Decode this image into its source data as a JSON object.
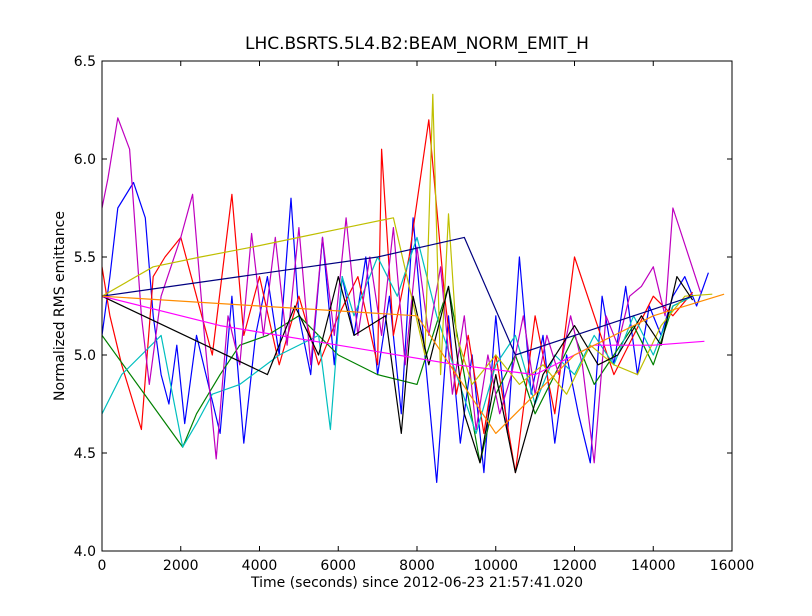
{
  "chart_data": {
    "type": "line",
    "title": "LHC.BSRTS.5L4.B2:BEAM_NORM_EMIT_H",
    "xlabel": "Time (seconds) since 2012-06-23 21:57:41.020",
    "ylabel": "Normalized RMS emittance",
    "xlim": [
      0,
      16000
    ],
    "ylim": [
      4.0,
      6.5
    ],
    "xticks": [
      0,
      2000,
      4000,
      6000,
      8000,
      10000,
      12000,
      14000,
      16000
    ],
    "xtick_labels": [
      "0",
      "2000",
      "4000",
      "6000",
      "8000",
      "10000",
      "12000",
      "14000",
      "16000"
    ],
    "yticks": [
      4.0,
      4.5,
      5.0,
      5.5,
      6.0,
      6.5
    ],
    "ytick_labels": [
      "4.0",
      "4.5",
      "5.0",
      "5.5",
      "6.0",
      "6.5"
    ],
    "grid": false,
    "legend": "none",
    "series": [
      {
        "color": "#0000ff",
        "x": [
          0,
          200,
          400,
          800,
          1100,
          1300,
          1500,
          1700,
          1900,
          2100,
          2400,
          2700,
          3000,
          3300,
          3600,
          3900,
          4200,
          4500,
          4800,
          5000,
          5300,
          5600,
          5900,
          6100,
          6400,
          6700,
          7000,
          7300,
          7600,
          7900,
          8200,
          8500,
          8800,
          9100,
          9400,
          9700,
          10000,
          10300,
          10600,
          10900,
          11200,
          11500,
          11800,
          12100,
          12400,
          12700,
          13000,
          13300,
          13600,
          13900,
          14200,
          14500,
          14800,
          15100,
          15400
        ],
        "y": [
          5.1,
          5.4,
          5.75,
          5.88,
          5.7,
          5.2,
          4.9,
          4.75,
          5.05,
          4.65,
          5.1,
          4.85,
          4.6,
          5.3,
          4.55,
          5.1,
          5.4,
          5.0,
          5.8,
          5.2,
          4.9,
          5.6,
          4.95,
          5.4,
          5.1,
          5.5,
          4.9,
          5.3,
          4.7,
          5.7,
          5.0,
          4.35,
          5.2,
          4.55,
          5.0,
          4.4,
          5.2,
          4.6,
          5.5,
          4.8,
          5.1,
          4.55,
          5.0,
          4.7,
          4.45,
          5.3,
          4.95,
          5.35,
          4.9,
          5.25,
          5.1,
          5.3,
          5.4,
          5.25,
          5.42
        ]
      },
      {
        "color": "#ff0000",
        "x": [
          0,
          200,
          500,
          1000,
          1300,
          1600,
          2000,
          2400,
          2800,
          3300,
          3600,
          4000,
          4500,
          5000,
          5500,
          6000,
          6500,
          7000,
          7100,
          7400,
          7800,
          8300,
          8700,
          9000,
          9300,
          9700,
          10000,
          10500,
          11000,
          11500,
          12000,
          12500,
          13000,
          13500,
          14000,
          14500,
          15000
        ],
        "y": [
          5.45,
          5.2,
          4.95,
          4.62,
          5.4,
          5.5,
          5.6,
          5.3,
          5.0,
          5.82,
          5.1,
          5.4,
          4.95,
          5.3,
          4.95,
          5.2,
          5.4,
          4.95,
          6.05,
          5.1,
          5.5,
          6.2,
          5.3,
          4.8,
          5.1,
          4.6,
          5.0,
          4.4,
          5.2,
          4.7,
          5.5,
          5.2,
          4.9,
          5.1,
          5.3,
          5.2,
          5.32
        ]
      },
      {
        "color": "#008000",
        "x": [
          0,
          2050,
          2400,
          3000,
          3500,
          4200,
          5000,
          6000,
          7000,
          8000,
          8800,
          9600,
          10000,
          10500,
          11000,
          11500,
          12000,
          12500,
          13000,
          13500,
          14000,
          14500,
          15000
        ],
        "y": [
          5.1,
          4.53,
          4.7,
          4.9,
          5.05,
          5.1,
          5.2,
          5.0,
          4.9,
          4.85,
          5.35,
          4.45,
          4.8,
          5.0,
          4.7,
          4.9,
          5.1,
          4.85,
          5.0,
          5.15,
          4.95,
          5.25,
          5.3
        ]
      },
      {
        "color": "#00bfbf",
        "x": [
          0,
          500,
          1500,
          2050,
          2400,
          2800,
          3500,
          4500,
          5500,
          5800,
          6100,
          6400,
          7000,
          7500,
          8000,
          8500,
          9000,
          9500,
          10000,
          10500,
          11000,
          11500,
          12000,
          12500,
          13000,
          13500,
          14000,
          14500,
          15000
        ],
        "y": [
          4.7,
          4.9,
          5.1,
          4.53,
          4.65,
          4.8,
          4.85,
          5.0,
          5.1,
          4.62,
          5.4,
          5.2,
          5.5,
          5.3,
          5.6,
          5.2,
          4.9,
          4.6,
          4.95,
          5.1,
          4.75,
          5.0,
          4.9,
          5.1,
          4.95,
          5.2,
          5.0,
          5.25,
          5.3
        ]
      },
      {
        "color": "#bf00bf",
        "x": [
          0,
          150,
          400,
          700,
          1000,
          1200,
          1500,
          2000,
          2300,
          2600,
          2900,
          3200,
          3500,
          3800,
          4100,
          4400,
          4700,
          5000,
          5300,
          5600,
          5900,
          6200,
          6500,
          6800,
          7100,
          7400,
          7700,
          8000,
          8300,
          8600,
          8900,
          9200,
          9500,
          9800,
          10100,
          10400,
          10700,
          11000,
          11300,
          11600,
          11900,
          12200,
          12500,
          12800,
          13100,
          13400,
          13700,
          14000,
          14300,
          14500,
          15200
        ],
        "y": [
          5.75,
          5.9,
          6.21,
          6.05,
          5.2,
          4.85,
          5.3,
          5.6,
          5.82,
          5.1,
          4.47,
          5.2,
          4.95,
          5.62,
          5.1,
          5.6,
          5.05,
          5.65,
          4.95,
          5.6,
          5.1,
          5.7,
          5.1,
          5.5,
          5.1,
          5.65,
          4.95,
          5.55,
          5.1,
          5.45,
          4.8,
          5.2,
          4.62,
          5.0,
          4.7,
          4.9,
          5.2,
          4.8,
          5.1,
          4.9,
          5.2,
          4.95,
          4.45,
          5.2,
          5.05,
          5.3,
          5.35,
          5.45,
          5.2,
          5.75,
          5.32
        ]
      },
      {
        "color": "#bfbf00",
        "x": [
          0,
          1300,
          2500,
          3800,
          5000,
          6200,
          7400,
          8200,
          8400,
          8600,
          8800,
          9000,
          9400,
          10000,
          10600,
          11200,
          11800,
          12400,
          13000,
          13600,
          14200,
          14800,
          15500
        ],
        "y": [
          5.3,
          5.45,
          5.5,
          5.55,
          5.6,
          5.65,
          5.7,
          5.0,
          6.33,
          4.9,
          5.72,
          5.1,
          4.85,
          5.0,
          4.85,
          4.95,
          4.8,
          5.05,
          4.95,
          4.9,
          5.15,
          5.3,
          5.31
        ]
      },
      {
        "color": "#000000",
        "x": [
          0,
          4200,
          4900,
          5500,
          6000,
          6400,
          7200,
          7600,
          7900,
          8300,
          8800,
          9200,
          9600,
          10000,
          10500,
          11200,
          12000,
          12600,
          13100,
          13700,
          14200,
          14600,
          15000
        ],
        "y": [
          5.3,
          4.9,
          5.25,
          5.0,
          5.4,
          5.1,
          5.2,
          4.6,
          5.3,
          4.95,
          5.35,
          4.7,
          4.45,
          4.9,
          4.4,
          4.9,
          5.15,
          4.95,
          5.0,
          5.2,
          5.05,
          5.4,
          5.28
        ]
      },
      {
        "color": "#000080",
        "x": [
          0,
          3500,
          7000,
          9200,
          10500,
          12000,
          13500,
          15000
        ],
        "y": [
          5.3,
          5.4,
          5.5,
          5.6,
          5.0,
          5.1,
          5.2,
          5.3
        ]
      },
      {
        "color": "#ff00ff",
        "x": [
          0,
          3000,
          6000,
          9000,
          11000,
          12500,
          14000,
          15300
        ],
        "y": [
          5.3,
          5.15,
          5.05,
          4.95,
          4.9,
          5.05,
          5.05,
          5.07
        ]
      },
      {
        "color": "#ff8c00",
        "x": [
          0,
          4000,
          8000,
          10000,
          12000,
          14000,
          15800
        ],
        "y": [
          5.3,
          5.25,
          5.2,
          4.6,
          5.0,
          5.2,
          5.31
        ]
      }
    ]
  }
}
